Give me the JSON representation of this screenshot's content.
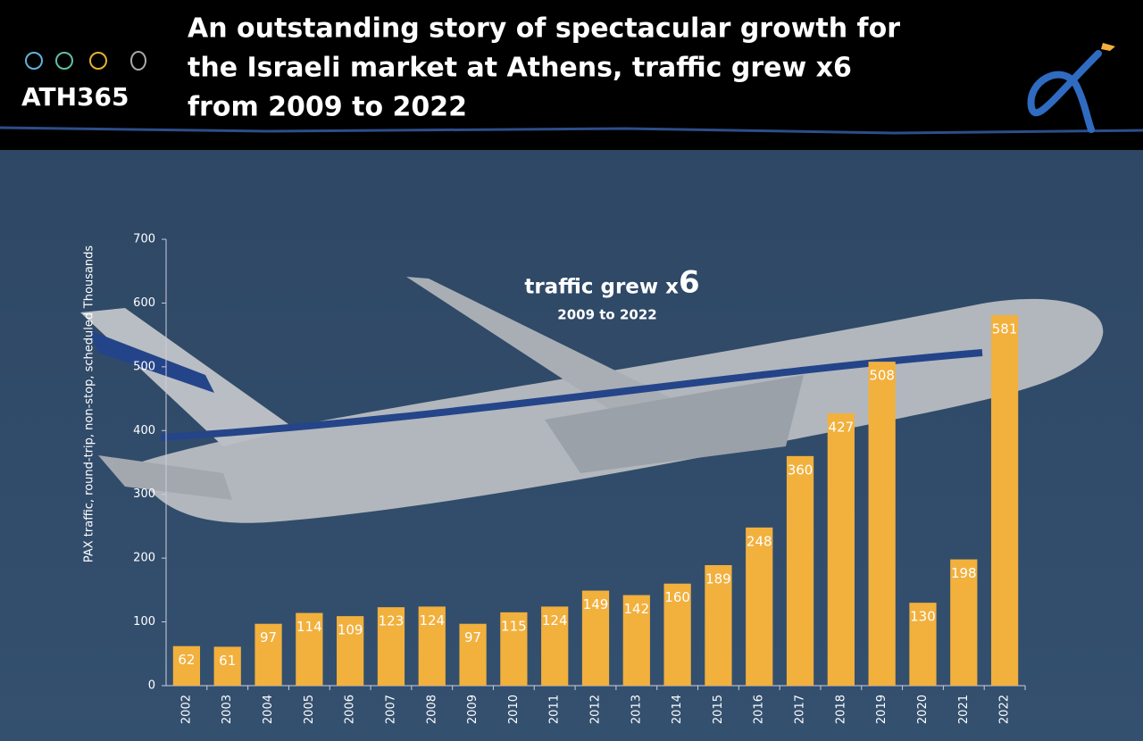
{
  "header": {
    "logo": "ATH365"
  },
  "chart_data": {
    "type": "bar",
    "title_lines": [
      "An outstanding story of spectacular growth for",
      "the Israeli market at Athens, traffic grew x6",
      "from 2009 to 2022"
    ],
    "y_label": "PAX traffic, round-trip, non-stop, scheduled",
    "y_unit": "Thousands",
    "annotation": {
      "text": "traffic grew x",
      "emphasis": "6",
      "subtitle": "2009 to 2022"
    },
    "categories": [
      "2002",
      "2003",
      "2004",
      "2005",
      "2006",
      "2007",
      "2008",
      "2009",
      "2010",
      "2011",
      "2012",
      "2013",
      "2014",
      "2015",
      "2016",
      "2017",
      "2018",
      "2019",
      "2020",
      "2021",
      "2022"
    ],
    "values": [
      62,
      61,
      97,
      114,
      109,
      123,
      124,
      97,
      115,
      124,
      149,
      142,
      160,
      189,
      248,
      360,
      427,
      508,
      130,
      198,
      581
    ],
    "color": "#f2b03d",
    "ylim": [
      0,
      700
    ],
    "yticks": [
      0,
      100,
      200,
      300,
      400,
      500,
      600,
      700
    ],
    "grid": false
  }
}
